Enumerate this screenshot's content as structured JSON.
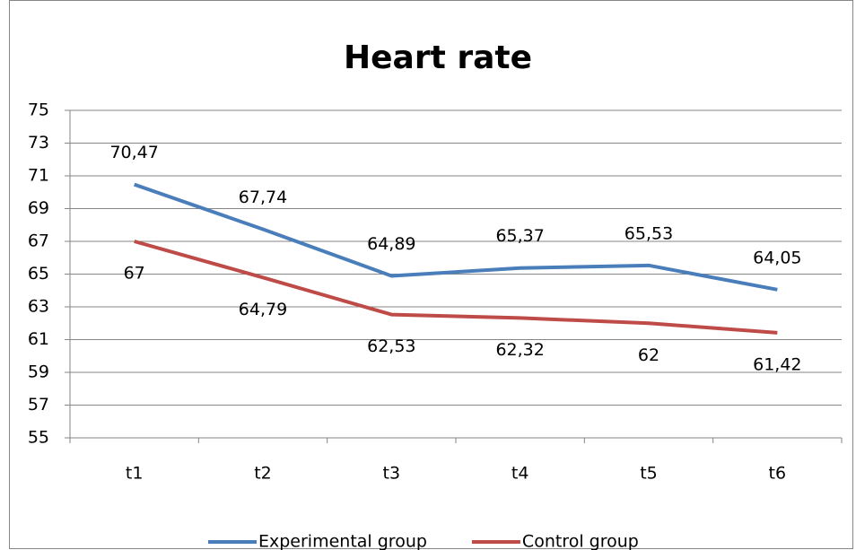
{
  "chart_data": {
    "type": "line",
    "title": "Heart rate",
    "categories": [
      "t1",
      "t2",
      "t3",
      "t4",
      "t5",
      "t6"
    ],
    "series": [
      {
        "name": "Experimental group",
        "color": "#4a7ebb",
        "values": [
          70.47,
          67.74,
          64.89,
          65.37,
          65.53,
          64.05
        ],
        "value_labels": [
          "70,47",
          "67,74",
          "64,89",
          "65,37",
          "65,53",
          "64,05"
        ]
      },
      {
        "name": "Control group",
        "color": "#be4b48",
        "values": [
          67,
          64.79,
          62.53,
          62.32,
          62,
          61.42
        ],
        "value_labels": [
          "67",
          "64,79",
          "62,53",
          "62,32",
          "62",
          "61,42"
        ]
      }
    ],
    "ylim": [
      55,
      75
    ],
    "yticks": [
      55,
      57,
      59,
      61,
      63,
      65,
      67,
      69,
      71,
      73,
      75
    ],
    "grid": true,
    "legend": "bottom"
  }
}
